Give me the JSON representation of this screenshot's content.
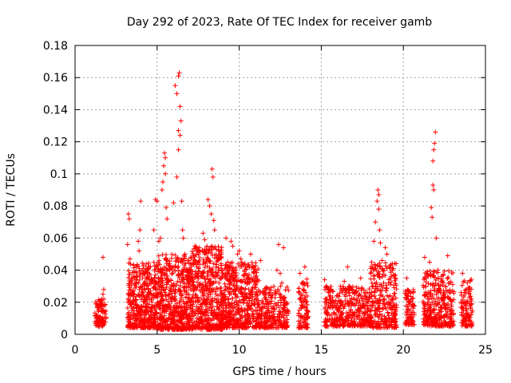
{
  "chart_data": {
    "type": "scatter",
    "title": "Day 292 of 2023, Rate Of TEC Index for receiver gamb",
    "xlabel": "GPS time / hours",
    "ylabel": "ROTI / TECUs",
    "xlim": [
      0,
      25
    ],
    "ylim": [
      0,
      0.18
    ],
    "x_ticks": [
      "0",
      "5",
      "10",
      "15",
      "20",
      "25"
    ],
    "y_ticks": [
      "0",
      "0.02",
      "0.04",
      "0.06",
      "0.08",
      "0.1",
      "0.12",
      "0.14",
      "0.16",
      "0.18"
    ],
    "x_tick_values": [
      0,
      5,
      10,
      15,
      20,
      25
    ],
    "y_tick_values": [
      0,
      0.02,
      0.04,
      0.06,
      0.08,
      0.1,
      0.12,
      0.14,
      0.16,
      0.18
    ],
    "grid": true,
    "marker": "plus",
    "color": "#ff0000",
    "series": [
      {
        "points": [
          [
            1.3,
            0.012
          ],
          [
            1.35,
            0.018
          ],
          [
            1.4,
            0.009
          ],
          [
            1.45,
            0.015
          ],
          [
            1.5,
            0.021
          ],
          [
            1.55,
            0.011
          ],
          [
            1.6,
            0.016
          ],
          [
            1.65,
            0.008
          ],
          [
            1.7,
            0.025
          ],
          [
            1.75,
            0.028
          ],
          [
            1.7,
            0.048
          ],
          [
            1.8,
            0.014
          ],
          [
            1.6,
            0.019
          ],
          [
            1.5,
            0.007
          ],
          [
            3.2,
            0.056
          ],
          [
            3.25,
            0.075
          ],
          [
            3.3,
            0.072
          ],
          [
            3.35,
            0.047
          ],
          [
            3.4,
            0.028
          ],
          [
            3.3,
            0.02
          ],
          [
            3.5,
            0.016
          ],
          [
            3.6,
            0.025
          ],
          [
            3.7,
            0.012
          ],
          [
            3.8,
            0.018
          ],
          [
            3.9,
            0.052
          ],
          [
            3.95,
            0.065
          ],
          [
            3.85,
            0.058
          ],
          [
            4.0,
            0.083
          ],
          [
            4.1,
            0.03
          ],
          [
            4.2,
            0.022
          ],
          [
            4.3,
            0.014
          ],
          [
            4.4,
            0.019
          ],
          [
            4.5,
            0.026
          ],
          [
            4.6,
            0.011
          ],
          [
            4.7,
            0.033
          ],
          [
            4.8,
            0.024
          ],
          [
            4.9,
            0.037
          ],
          [
            4.8,
            0.065
          ],
          [
            4.9,
            0.084
          ],
          [
            5.0,
            0.083
          ],
          [
            5.1,
            0.058
          ],
          [
            5.2,
            0.06
          ],
          [
            5.3,
            0.09
          ],
          [
            5.35,
            0.095
          ],
          [
            5.4,
            0.105
          ],
          [
            5.45,
            0.113
          ],
          [
            5.5,
            0.11
          ],
          [
            5.5,
            0.1
          ],
          [
            5.55,
            0.079
          ],
          [
            5.6,
            0.072
          ],
          [
            5.2,
            0.03
          ],
          [
            5.3,
            0.022
          ],
          [
            5.4,
            0.016
          ],
          [
            5.6,
            0.04
          ],
          [
            5.7,
            0.033
          ],
          [
            5.8,
            0.027
          ],
          [
            6.0,
            0.082
          ],
          [
            6.1,
            0.155
          ],
          [
            6.2,
            0.15
          ],
          [
            6.3,
            0.161
          ],
          [
            6.35,
            0.163
          ],
          [
            6.4,
            0.142
          ],
          [
            6.45,
            0.133
          ],
          [
            6.3,
            0.127
          ],
          [
            6.4,
            0.124
          ],
          [
            6.3,
            0.115
          ],
          [
            6.2,
            0.098
          ],
          [
            6.5,
            0.083
          ],
          [
            6.55,
            0.065
          ],
          [
            6.6,
            0.06
          ],
          [
            6.7,
            0.05
          ],
          [
            6.6,
            0.039
          ],
          [
            6.5,
            0.034
          ],
          [
            6.4,
            0.025
          ],
          [
            6.2,
            0.019
          ],
          [
            6.1,
            0.013
          ],
          [
            6.0,
            0.028
          ],
          [
            5.9,
            0.022
          ],
          [
            7.0,
            0.04
          ],
          [
            7.2,
            0.03
          ],
          [
            7.3,
            0.055
          ],
          [
            7.4,
            0.038
          ],
          [
            7.5,
            0.021
          ],
          [
            7.6,
            0.017
          ],
          [
            7.7,
            0.028
          ],
          [
            7.8,
            0.063
          ],
          [
            7.9,
            0.059
          ],
          [
            8.0,
            0.051
          ],
          [
            8.1,
            0.084
          ],
          [
            8.2,
            0.08
          ],
          [
            8.3,
            0.075
          ],
          [
            8.35,
            0.103
          ],
          [
            8.4,
            0.098
          ],
          [
            8.45,
            0.071
          ],
          [
            8.5,
            0.065
          ],
          [
            8.6,
            0.053
          ],
          [
            8.7,
            0.046
          ],
          [
            8.8,
            0.035
          ],
          [
            8.9,
            0.027
          ],
          [
            9.0,
            0.04
          ],
          [
            9.2,
            0.06
          ],
          [
            9.3,
            0.045
          ],
          [
            9.4,
            0.038
          ],
          [
            9.5,
            0.058
          ],
          [
            9.6,
            0.055
          ],
          [
            9.7,
            0.04
          ],
          [
            9.8,
            0.028
          ],
          [
            9.9,
            0.05
          ],
          [
            10.0,
            0.052
          ],
          [
            10.1,
            0.047
          ],
          [
            10.2,
            0.033
          ],
          [
            10.3,
            0.022
          ],
          [
            10.4,
            0.038
          ],
          [
            10.5,
            0.035
          ],
          [
            10.6,
            0.016
          ],
          [
            10.7,
            0.05
          ],
          [
            10.8,
            0.026
          ],
          [
            10.9,
            0.019
          ],
          [
            11.0,
            0.031
          ],
          [
            11.2,
            0.012
          ],
          [
            11.3,
            0.046
          ],
          [
            11.4,
            0.02
          ],
          [
            11.6,
            0.022
          ],
          [
            11.8,
            0.015
          ],
          [
            12.0,
            0.017
          ],
          [
            12.1,
            0.01
          ],
          [
            12.2,
            0.026
          ],
          [
            12.3,
            0.04
          ],
          [
            12.4,
            0.056
          ],
          [
            12.5,
            0.038
          ],
          [
            12.6,
            0.032
          ],
          [
            12.7,
            0.054
          ],
          [
            12.8,
            0.018
          ],
          [
            12.9,
            0.014
          ],
          [
            13.7,
            0.038
          ],
          [
            13.8,
            0.02
          ],
          [
            13.9,
            0.028
          ],
          [
            14.0,
            0.042
          ],
          [
            14.1,
            0.015
          ],
          [
            14.2,
            0.011
          ],
          [
            14.0,
            0.008
          ],
          [
            15.2,
            0.034
          ],
          [
            15.3,
            0.022
          ],
          [
            15.4,
            0.016
          ],
          [
            15.6,
            0.028
          ],
          [
            15.8,
            0.013
          ],
          [
            16.0,
            0.024
          ],
          [
            16.2,
            0.018
          ],
          [
            16.4,
            0.033
          ],
          [
            16.6,
            0.042
          ],
          [
            16.8,
            0.029
          ],
          [
            17.0,
            0.012
          ],
          [
            17.2,
            0.021
          ],
          [
            17.4,
            0.035
          ],
          [
            17.6,
            0.018
          ],
          [
            17.8,
            0.026
          ],
          [
            18.0,
            0.038
          ],
          [
            18.2,
            0.058
          ],
          [
            18.3,
            0.07
          ],
          [
            18.4,
            0.083
          ],
          [
            18.45,
            0.09
          ],
          [
            18.5,
            0.087
          ],
          [
            18.5,
            0.078
          ],
          [
            18.55,
            0.065
          ],
          [
            18.6,
            0.057
          ],
          [
            18.7,
            0.046
          ],
          [
            18.8,
            0.032
          ],
          [
            18.9,
            0.054
          ],
          [
            19.0,
            0.05
          ],
          [
            19.2,
            0.035
          ],
          [
            19.3,
            0.022
          ],
          [
            19.4,
            0.017
          ],
          [
            19.5,
            0.012
          ],
          [
            20.2,
            0.035
          ],
          [
            20.3,
            0.022
          ],
          [
            20.4,
            0.015
          ],
          [
            20.5,
            0.01
          ],
          [
            20.6,
            0.026
          ],
          [
            21.3,
            0.048
          ],
          [
            21.4,
            0.035
          ],
          [
            21.5,
            0.022
          ],
          [
            21.6,
            0.045
          ],
          [
            21.7,
            0.079
          ],
          [
            21.75,
            0.073
          ],
          [
            21.8,
            0.093
          ],
          [
            21.85,
            0.09
          ],
          [
            21.8,
            0.108
          ],
          [
            21.85,
            0.115
          ],
          [
            21.9,
            0.119
          ],
          [
            21.95,
            0.126
          ],
          [
            22.0,
            0.06
          ],
          [
            22.1,
            0.04
          ],
          [
            22.2,
            0.028
          ],
          [
            22.3,
            0.017
          ],
          [
            22.5,
            0.025
          ],
          [
            22.6,
            0.012
          ],
          [
            22.7,
            0.049
          ],
          [
            22.8,
            0.032
          ],
          [
            22.9,
            0.021
          ],
          [
            23.0,
            0.015
          ],
          [
            23.6,
            0.038
          ],
          [
            23.7,
            0.026
          ],
          [
            23.8,
            0.018
          ],
          [
            23.9,
            0.032
          ],
          [
            24.0,
            0.012
          ],
          [
            24.1,
            0.022
          ]
        ],
        "clusters": [
          {
            "x": [
              1.2,
              1.9
            ],
            "y": [
              0.005,
              0.022
            ],
            "n": 90
          },
          {
            "x": [
              3.2,
              5.0
            ],
            "y": [
              0.004,
              0.045
            ],
            "n": 420
          },
          {
            "x": [
              5.0,
              7.0
            ],
            "y": [
              0.003,
              0.05
            ],
            "n": 520
          },
          {
            "x": [
              7.0,
              9.0
            ],
            "y": [
              0.003,
              0.055
            ],
            "n": 520
          },
          {
            "x": [
              9.0,
              11.2
            ],
            "y": [
              0.004,
              0.045
            ],
            "n": 480
          },
          {
            "x": [
              11.2,
              13.0
            ],
            "y": [
              0.004,
              0.03
            ],
            "n": 240
          },
          {
            "x": [
              13.6,
              14.2
            ],
            "y": [
              0.004,
              0.035
            ],
            "n": 90
          },
          {
            "x": [
              15.2,
              18.0
            ],
            "y": [
              0.005,
              0.03
            ],
            "n": 380
          },
          {
            "x": [
              18.0,
              19.6
            ],
            "y": [
              0.004,
              0.045
            ],
            "n": 280
          },
          {
            "x": [
              20.1,
              20.7
            ],
            "y": [
              0.006,
              0.028
            ],
            "n": 80
          },
          {
            "x": [
              21.2,
              23.1
            ],
            "y": [
              0.005,
              0.04
            ],
            "n": 320
          },
          {
            "x": [
              23.5,
              24.2
            ],
            "y": [
              0.005,
              0.035
            ],
            "n": 110
          }
        ]
      }
    ]
  }
}
